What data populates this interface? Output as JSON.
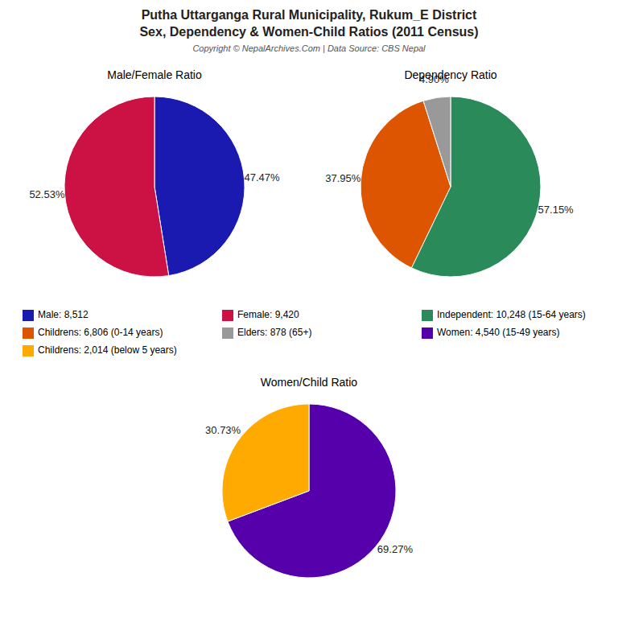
{
  "title": "Putha Uttarganga Rural Municipality, Rukum_E District",
  "subtitle": "Sex, Dependency & Women-Child Ratios (2011 Census)",
  "annotations": [
    "Copyright © NepalArchives.Com | Data Source: CBS Nepal"
  ],
  "chart_data": [
    {
      "type": "pie",
      "title": "Male/Female Ratio",
      "categories": [
        "Male: 8,512",
        "Female: 9,420"
      ],
      "values": [
        47.47,
        52.53
      ],
      "value_labels": [
        "47.47%",
        "52.53%"
      ],
      "colors": [
        "#1a1ab0",
        "#cc1144"
      ],
      "data_labels": true,
      "legend": "center"
    },
    {
      "type": "pie",
      "title": "Dependency Ratio",
      "categories": [
        "Independent: 10,248 (15-64 years)",
        "Childrens: 6,806 (0-14 years)",
        "Elders: 878 (65+)"
      ],
      "values": [
        57.15,
        37.95,
        4.9
      ],
      "value_labels": [
        "57.15%",
        "37.95%",
        "4.90%"
      ],
      "colors": [
        "#2a8a5a",
        "#dd5500",
        "#999999"
      ],
      "data_labels": true,
      "legend": "center"
    },
    {
      "type": "pie",
      "title": "Women/Child Ratio",
      "categories": [
        "Women: 4,540 (15-49 years)",
        "Childrens: 2,014 (below 5 years)"
      ],
      "values": [
        69.27,
        30.73
      ],
      "value_labels": [
        "69.27%",
        "30.73%"
      ],
      "colors": [
        "#5500aa",
        "#ffaa00"
      ],
      "data_labels": true,
      "legend": "center"
    }
  ]
}
